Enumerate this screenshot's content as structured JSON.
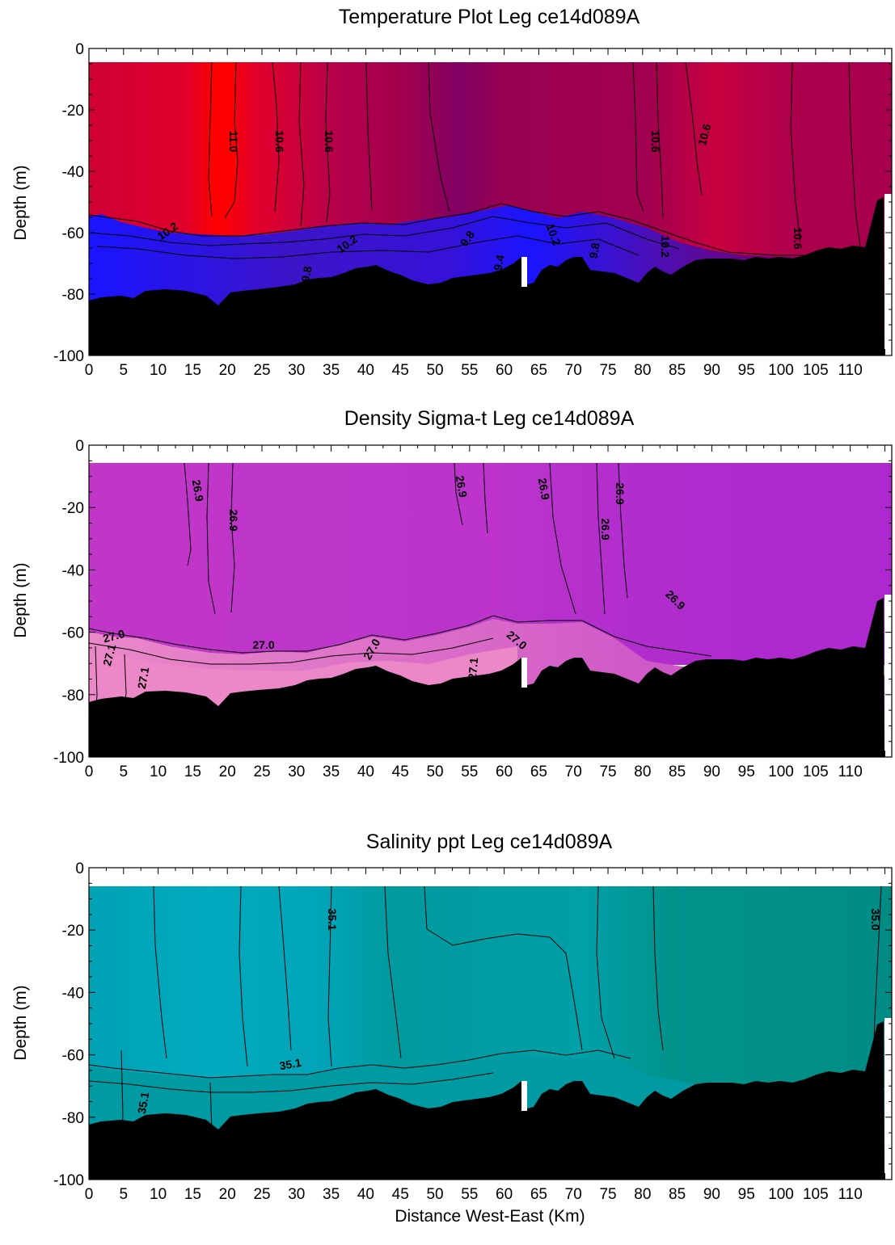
{
  "chart_data": [
    {
      "type": "heatmap",
      "title": "Temperature Plot Leg ce14d089A",
      "ylabel": "Depth (m)",
      "xlabel": "",
      "xlim": [
        0,
        116
      ],
      "ylim": [
        -100,
        0
      ],
      "x_ticks": [
        "0",
        "5",
        "10",
        "15",
        "20",
        "25",
        "30",
        "35",
        "40",
        "45",
        "50",
        "55",
        "60",
        "65",
        "70",
        "75",
        "80",
        "85",
        "90",
        "95",
        "100",
        "105",
        "110"
      ],
      "y_ticks": [
        "0",
        "-20",
        "-40",
        "-60",
        "-80",
        "-100"
      ],
      "grid": false,
      "palette": {
        "warm": "#d8002e",
        "warmest": "#ff0000",
        "mid": "#a0004e",
        "cool": "#7a0070",
        "cold": "#3c14c8",
        "coldest": "#1a14ff",
        "seafloor": "#000000"
      },
      "contour_labels": [
        {
          "text": "11.0",
          "x": 21,
          "y": -30
        },
        {
          "text": "10.6",
          "x": 28,
          "y": -30
        },
        {
          "text": "10.6",
          "x": 35,
          "y": -30
        },
        {
          "text": "10.6",
          "x": 81.5,
          "y": -30
        },
        {
          "text": "10.6",
          "x": 89.5,
          "y": -28
        },
        {
          "text": "10.2",
          "x": 11,
          "y": -62
        },
        {
          "text": "10.2",
          "x": 38,
          "y": -64
        },
        {
          "text": "9.8",
          "x": 33,
          "y": -73
        },
        {
          "text": "9.8",
          "x": 54,
          "y": -64
        },
        {
          "text": "10.2",
          "x": 64,
          "y": -62
        },
        {
          "text": "9.4",
          "x": 60,
          "y": -69
        },
        {
          "text": "9.8",
          "x": 73.5,
          "y": -68
        },
        {
          "text": "10.2",
          "x": 83.5,
          "y": -67
        },
        {
          "text": "10.6",
          "x": 103.5,
          "y": -62
        }
      ]
    },
    {
      "type": "heatmap",
      "title": "Density Sigma-t Leg ce14d089A",
      "ylabel": "Depth (m)",
      "xlabel": "",
      "xlim": [
        0,
        116
      ],
      "ylim": [
        -100,
        0
      ],
      "x_ticks": [
        "0",
        "5",
        "10",
        "15",
        "20",
        "25",
        "30",
        "35",
        "40",
        "45",
        "50",
        "55",
        "60",
        "65",
        "70",
        "75",
        "80",
        "85",
        "90",
        "95",
        "100",
        "105",
        "110"
      ],
      "y_ticks": [
        "0",
        "-20",
        "-40",
        "-60",
        "-80",
        "-100"
      ],
      "grid": false,
      "palette": {
        "light": "#c135c8",
        "mid": "#b12ccc",
        "dense": "#d05acb",
        "densest": "#e880c8",
        "seafloor": "#000000"
      },
      "contour_labels": [
        {
          "text": "26.9",
          "x": 15.5,
          "y": -14
        },
        {
          "text": "26.9",
          "x": 21,
          "y": -22
        },
        {
          "text": "26.9",
          "x": 54.5,
          "y": -12
        },
        {
          "text": "26.9",
          "x": 65.5,
          "y": -12
        },
        {
          "text": "26.9",
          "x": 77.5,
          "y": -14
        },
        {
          "text": "26.9",
          "x": 74.5,
          "y": -27
        },
        {
          "text": "26.9",
          "x": 84.5,
          "y": -51
        },
        {
          "text": "27.0",
          "x": 3,
          "y": -63
        },
        {
          "text": "27.1",
          "x": 3,
          "y": -70
        },
        {
          "text": "27.1",
          "x": 8.5,
          "y": -77
        },
        {
          "text": "27.0",
          "x": 25.5,
          "y": -65
        },
        {
          "text": "27.0",
          "x": 42,
          "y": -68
        },
        {
          "text": "27.1",
          "x": 57,
          "y": -71
        },
        {
          "text": "27.0",
          "x": 60.5,
          "y": -61
        }
      ]
    },
    {
      "type": "heatmap",
      "title": "Salinity ppt Leg ce14d089A",
      "ylabel": "Depth (m)",
      "xlabel": "Distance West-East (Km)",
      "xlim": [
        0,
        116
      ],
      "ylim": [
        -100,
        0
      ],
      "x_ticks": [
        "0",
        "5",
        "10",
        "15",
        "20",
        "25",
        "30",
        "35",
        "40",
        "45",
        "50",
        "55",
        "60",
        "65",
        "70",
        "75",
        "80",
        "85",
        "90",
        "95",
        "100",
        "105",
        "110"
      ],
      "y_ticks": [
        "0",
        "-20",
        "-40",
        "-60",
        "-80",
        "-100"
      ],
      "grid": false,
      "palette": {
        "fresh": "#00a8bc",
        "mid": "#00a0b2",
        "salty": "#009a98",
        "saltiest": "#008e86",
        "seafloor": "#000000"
      },
      "contour_labels": [
        {
          "text": "35.1",
          "x": 35,
          "y": -15
        },
        {
          "text": "35.0",
          "x": 114,
          "y": -15
        },
        {
          "text": "35.1",
          "x": 30,
          "y": -64
        },
        {
          "text": "35.1",
          "x": 8,
          "y": -76
        }
      ]
    }
  ]
}
